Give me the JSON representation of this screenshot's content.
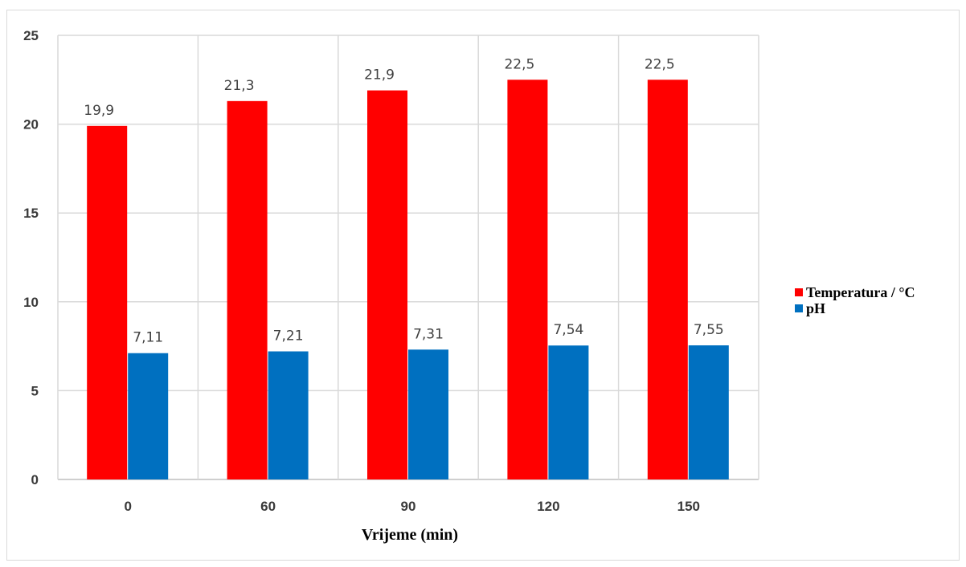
{
  "chart_data": {
    "type": "bar",
    "title": "",
    "xlabel": "Vrijeme  (min)",
    "ylabel": "",
    "categories": [
      "0",
      "60",
      "90",
      "120",
      "150"
    ],
    "ylim": [
      0,
      25
    ],
    "yticks": [
      0,
      5,
      10,
      15,
      20,
      25
    ],
    "grid": true,
    "legend_position": "right",
    "series": [
      {
        "name": "Temperatura / °C",
        "color": "#ff0000",
        "values": [
          19.9,
          21.3,
          21.9,
          22.5,
          22.5
        ],
        "labels": [
          "19,9",
          "21,3",
          "21,9",
          "22,5",
          "22,5"
        ]
      },
      {
        "name": "pH",
        "color": "#0070c0",
        "values": [
          7.11,
          7.21,
          7.31,
          7.54,
          7.55
        ],
        "labels": [
          "7,11",
          "7,21",
          "7,31",
          "7,54",
          "7,55"
        ]
      }
    ]
  }
}
